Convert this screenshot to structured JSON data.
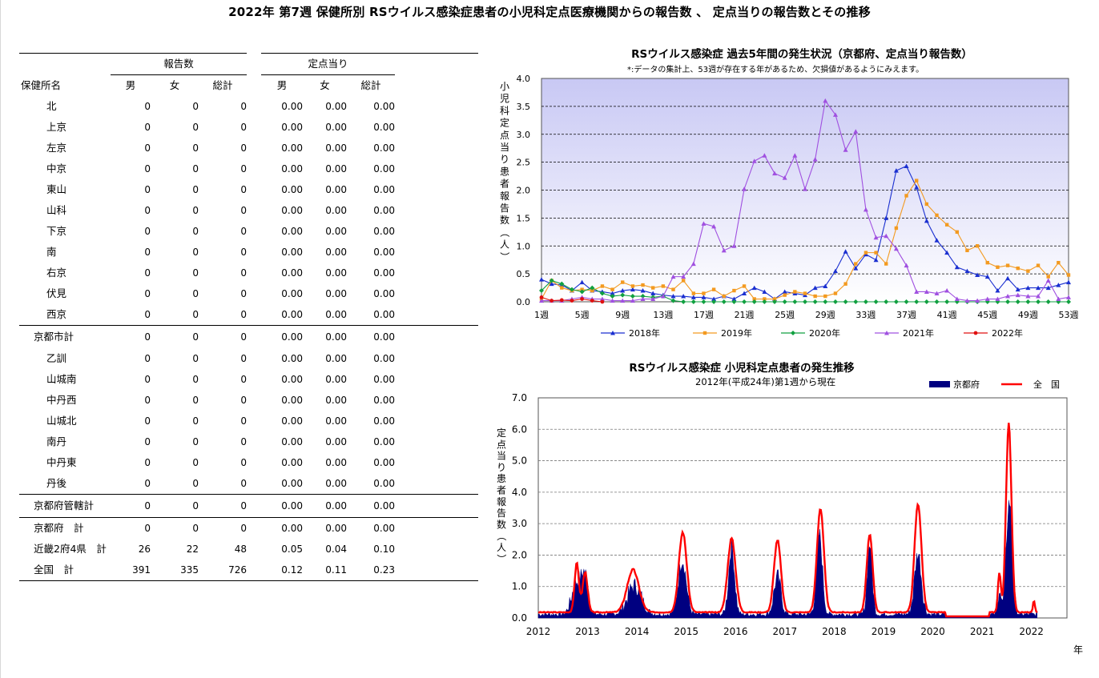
{
  "page_title": "2022年 第7週 保健所別 RSウイルス感染症患者の小児科定点医療機関からの報告数 、 定点当りの報告数とその推移",
  "table": {
    "group_headers": {
      "reports": "報告数",
      "per_sentinel": "定点当り"
    },
    "columns": [
      "保健所名",
      "男",
      "女",
      "総計",
      "男",
      "女",
      "総計"
    ],
    "rows": [
      {
        "name": "北",
        "level": "sub",
        "male": "0",
        "female": "0",
        "total": "0",
        "r_male": "0.00",
        "r_female": "0.00",
        "r_total": "0.00"
      },
      {
        "name": "上京",
        "level": "sub",
        "male": "0",
        "female": "0",
        "total": "0",
        "r_male": "0.00",
        "r_female": "0.00",
        "r_total": "0.00"
      },
      {
        "name": "左京",
        "level": "sub",
        "male": "0",
        "female": "0",
        "total": "0",
        "r_male": "0.00",
        "r_female": "0.00",
        "r_total": "0.00"
      },
      {
        "name": "中京",
        "level": "sub",
        "male": "0",
        "female": "0",
        "total": "0",
        "r_male": "0.00",
        "r_female": "0.00",
        "r_total": "0.00"
      },
      {
        "name": "東山",
        "level": "sub",
        "male": "0",
        "female": "0",
        "total": "0",
        "r_male": "0.00",
        "r_female": "0.00",
        "r_total": "0.00"
      },
      {
        "name": "山科",
        "level": "sub",
        "male": "0",
        "female": "0",
        "total": "0",
        "r_male": "0.00",
        "r_female": "0.00",
        "r_total": "0.00"
      },
      {
        "name": "下京",
        "level": "sub",
        "male": "0",
        "female": "0",
        "total": "0",
        "r_male": "0.00",
        "r_female": "0.00",
        "r_total": "0.00"
      },
      {
        "name": "南",
        "level": "sub",
        "male": "0",
        "female": "0",
        "total": "0",
        "r_male": "0.00",
        "r_female": "0.00",
        "r_total": "0.00"
      },
      {
        "name": "右京",
        "level": "sub",
        "male": "0",
        "female": "0",
        "total": "0",
        "r_male": "0.00",
        "r_female": "0.00",
        "r_total": "0.00"
      },
      {
        "name": "伏見",
        "level": "sub",
        "male": "0",
        "female": "0",
        "total": "0",
        "r_male": "0.00",
        "r_female": "0.00",
        "r_total": "0.00"
      },
      {
        "name": "西京",
        "level": "sub",
        "male": "0",
        "female": "0",
        "total": "0",
        "r_male": "0.00",
        "r_female": "0.00",
        "r_total": "0.00"
      },
      {
        "name": "京都市計",
        "level": "group",
        "male": "0",
        "female": "0",
        "total": "0",
        "r_male": "0.00",
        "r_female": "0.00",
        "r_total": "0.00"
      },
      {
        "name": "乙訓",
        "level": "sub",
        "male": "0",
        "female": "0",
        "total": "0",
        "r_male": "0.00",
        "r_female": "0.00",
        "r_total": "0.00"
      },
      {
        "name": "山城南",
        "level": "sub",
        "male": "0",
        "female": "0",
        "total": "0",
        "r_male": "0.00",
        "r_female": "0.00",
        "r_total": "0.00"
      },
      {
        "name": "中丹西",
        "level": "sub",
        "male": "0",
        "female": "0",
        "total": "0",
        "r_male": "0.00",
        "r_female": "0.00",
        "r_total": "0.00"
      },
      {
        "name": "山城北",
        "level": "sub",
        "male": "0",
        "female": "0",
        "total": "0",
        "r_male": "0.00",
        "r_female": "0.00",
        "r_total": "0.00"
      },
      {
        "name": "南丹",
        "level": "sub",
        "male": "0",
        "female": "0",
        "total": "0",
        "r_male": "0.00",
        "r_female": "0.00",
        "r_total": "0.00"
      },
      {
        "name": "中丹東",
        "level": "sub",
        "male": "0",
        "female": "0",
        "total": "0",
        "r_male": "0.00",
        "r_female": "0.00",
        "r_total": "0.00"
      },
      {
        "name": "丹後",
        "level": "sub",
        "male": "0",
        "female": "0",
        "total": "0",
        "r_male": "0.00",
        "r_female": "0.00",
        "r_total": "0.00"
      },
      {
        "name": "京都府管轄計",
        "level": "group",
        "male": "0",
        "female": "0",
        "total": "0",
        "r_male": "0.00",
        "r_female": "0.00",
        "r_total": "0.00"
      },
      {
        "name": "京都府　計",
        "level": "total",
        "male": "0",
        "female": "0",
        "total": "0",
        "r_male": "0.00",
        "r_female": "0.00",
        "r_total": "0.00"
      },
      {
        "name": "近畿2府4県　計",
        "level": "total",
        "male": "26",
        "female": "22",
        "total": "48",
        "r_male": "0.05",
        "r_female": "0.04",
        "r_total": "0.10"
      },
      {
        "name": "全国　計",
        "level": "total",
        "male": "391",
        "female": "335",
        "total": "726",
        "r_male": "0.12",
        "r_female": "0.11",
        "r_total": "0.23"
      }
    ]
  },
  "chart_data": [
    {
      "type": "line",
      "title": "RSウイルス感染症 過去5年間の発生状況（京都府、定点当り報告数）",
      "note": "*:データの集計上、53週が存在する年があるため、欠損値があるようにみえます。",
      "ylabel": "小児科定点当り患者報告数（人）",
      "ylim": [
        0,
        4.0
      ],
      "yticks": [
        "0.0",
        "0.5",
        "1.0",
        "1.5",
        "2.0",
        "2.5",
        "3.0",
        "3.5",
        "4.0"
      ],
      "xticks": [
        "1週",
        "5週",
        "9週",
        "13週",
        "17週",
        "21週",
        "25週",
        "29週",
        "33週",
        "37週",
        "41週",
        "45週",
        "49週",
        "53週"
      ],
      "xlim": [
        1,
        53
      ],
      "series": [
        {
          "name": "2018年",
          "color": "#1a2fd0",
          "marker": "triangle",
          "values": [
            0.4,
            0.32,
            0.3,
            0.2,
            0.35,
            0.2,
            0.18,
            0.15,
            0.2,
            0.22,
            0.2,
            0.15,
            0.12,
            0.1,
            0.1,
            0.08,
            0.08,
            0.05,
            0.1,
            0.05,
            0.15,
            0.25,
            0.18,
            0.05,
            0.18,
            0.15,
            0.12,
            0.25,
            0.28,
            0.55,
            0.9,
            0.6,
            0.85,
            0.75,
            1.5,
            2.35,
            2.43,
            2.05,
            1.45,
            1.1,
            0.88,
            0.62,
            0.55,
            0.48,
            0.45,
            0.2,
            0.42,
            0.22,
            0.25,
            0.25,
            0.25,
            0.3,
            0.35
          ]
        },
        {
          "name": "2019年",
          "color": "#f39a20",
          "marker": "square",
          "values": [
            0.05,
            0.38,
            0.25,
            0.2,
            0.22,
            0.2,
            0.28,
            0.22,
            0.35,
            0.28,
            0.3,
            0.25,
            0.28,
            0.22,
            0.38,
            0.15,
            0.15,
            0.22,
            0.1,
            0.2,
            0.28,
            0.05,
            0.05,
            0.05,
            0.12,
            0.18,
            0.15,
            0.1,
            0.1,
            0.15,
            0.32,
            0.68,
            0.88,
            0.88,
            0.68,
            1.32,
            1.9,
            2.17,
            1.75,
            1.55,
            1.38,
            1.25,
            0.92,
            1.0,
            0.7,
            0.62,
            0.65,
            0.6,
            0.55,
            0.65,
            0.45,
            0.7,
            0.48
          ]
        },
        {
          "name": "2020年",
          "color": "#10a040",
          "marker": "diamond",
          "values": [
            0.2,
            0.38,
            0.32,
            0.22,
            0.18,
            0.25,
            0.15,
            0.1,
            0.12,
            0.1,
            0.1,
            0.08,
            0.1,
            0.02,
            0.0,
            0.0,
            0.0,
            0.0,
            0.0,
            0.0,
            0.0,
            0.0,
            0.0,
            0.0,
            0.0,
            0.0,
            0.0,
            0.0,
            0.0,
            0.0,
            0.0,
            0.0,
            0.0,
            0.0,
            0.0,
            0.0,
            0.0,
            0.0,
            0.0,
            0.0,
            0.0,
            0.0,
            0.0,
            0.0,
            0.0,
            0.0,
            0.0,
            0.0,
            0.0,
            0.0,
            0.0,
            0.0,
            0.0
          ]
        },
        {
          "name": "2021年",
          "color": "#a050e0",
          "marker": "triangle",
          "values": [
            0.02,
            0.02,
            0.02,
            0.05,
            0.08,
            0.05,
            0.05,
            0.02,
            0.02,
            0.02,
            0.05,
            0.05,
            0.1,
            0.45,
            0.45,
            0.68,
            1.4,
            1.35,
            0.92,
            1.0,
            2.02,
            2.52,
            2.62,
            2.3,
            2.22,
            2.62,
            2.02,
            2.55,
            3.6,
            3.35,
            2.72,
            3.05,
            1.65,
            1.15,
            1.18,
            0.95,
            0.65,
            0.18,
            0.18,
            0.15,
            0.2,
            0.05,
            0.02,
            0.02,
            0.05,
            0.05,
            0.1,
            0.12,
            0.1,
            0.1,
            0.38,
            0.05,
            0.08
          ]
        },
        {
          "name": "2022年",
          "color": "#e01010",
          "marker": "circle",
          "values": [
            0.08,
            0.02,
            0.03,
            0.02,
            0.05,
            0.02,
            0.0
          ]
        }
      ]
    },
    {
      "type": "area",
      "title": "RSウイルス感染症 小児科定点患者の発生推移",
      "subtitle": "2012年(平成24年)第1週から現在",
      "ylabel": "定点当り患者報告数（人）",
      "ylim": [
        0,
        7.0
      ],
      "yticks": [
        "0.0",
        "1.0",
        "2.0",
        "3.0",
        "4.0",
        "5.0",
        "6.0",
        "7.0"
      ],
      "xticks": [
        "2012",
        "2013",
        "2014",
        "2015",
        "2016",
        "2017",
        "2018",
        "2019",
        "2020",
        "2021",
        "2022"
      ],
      "xunit": "年",
      "series": [
        {
          "name": "京都府",
          "color": "#000080",
          "style": "area",
          "peaks": [
            [
              2012.78,
              1.0,
              0.1
            ],
            [
              2012.95,
              1.1,
              0.07
            ],
            [
              2013.95,
              0.92,
              0.14
            ],
            [
              2014.92,
              1.75,
              0.08
            ],
            [
              2015.92,
              2.15,
              0.06
            ],
            [
              2016.85,
              1.2,
              0.07
            ],
            [
              2017.7,
              2.55,
              0.06
            ],
            [
              2018.72,
              2.25,
              0.05
            ],
            [
              2019.7,
              1.95,
              0.07
            ],
            [
              2021.55,
              3.6,
              0.06
            ],
            [
              2021.35,
              0.85,
              0.03
            ]
          ]
        },
        {
          "name": "全　国",
          "color": "#ff0000",
          "style": "line",
          "peaks": [
            [
              2012.78,
              1.55,
              0.045
            ],
            [
              2012.95,
              1.28,
              0.05
            ],
            [
              2013.92,
              1.35,
              0.12
            ],
            [
              2014.93,
              2.55,
              0.08
            ],
            [
              2015.92,
              2.35,
              0.08
            ],
            [
              2016.85,
              2.3,
              0.07
            ],
            [
              2017.72,
              3.3,
              0.07
            ],
            [
              2018.72,
              2.45,
              0.06
            ],
            [
              2019.7,
              3.45,
              0.07
            ],
            [
              2021.54,
              6.0,
              0.055
            ],
            [
              2021.35,
              1.25,
              0.03
            ],
            [
              2022.05,
              0.35,
              0.02
            ]
          ]
        }
      ]
    }
  ]
}
